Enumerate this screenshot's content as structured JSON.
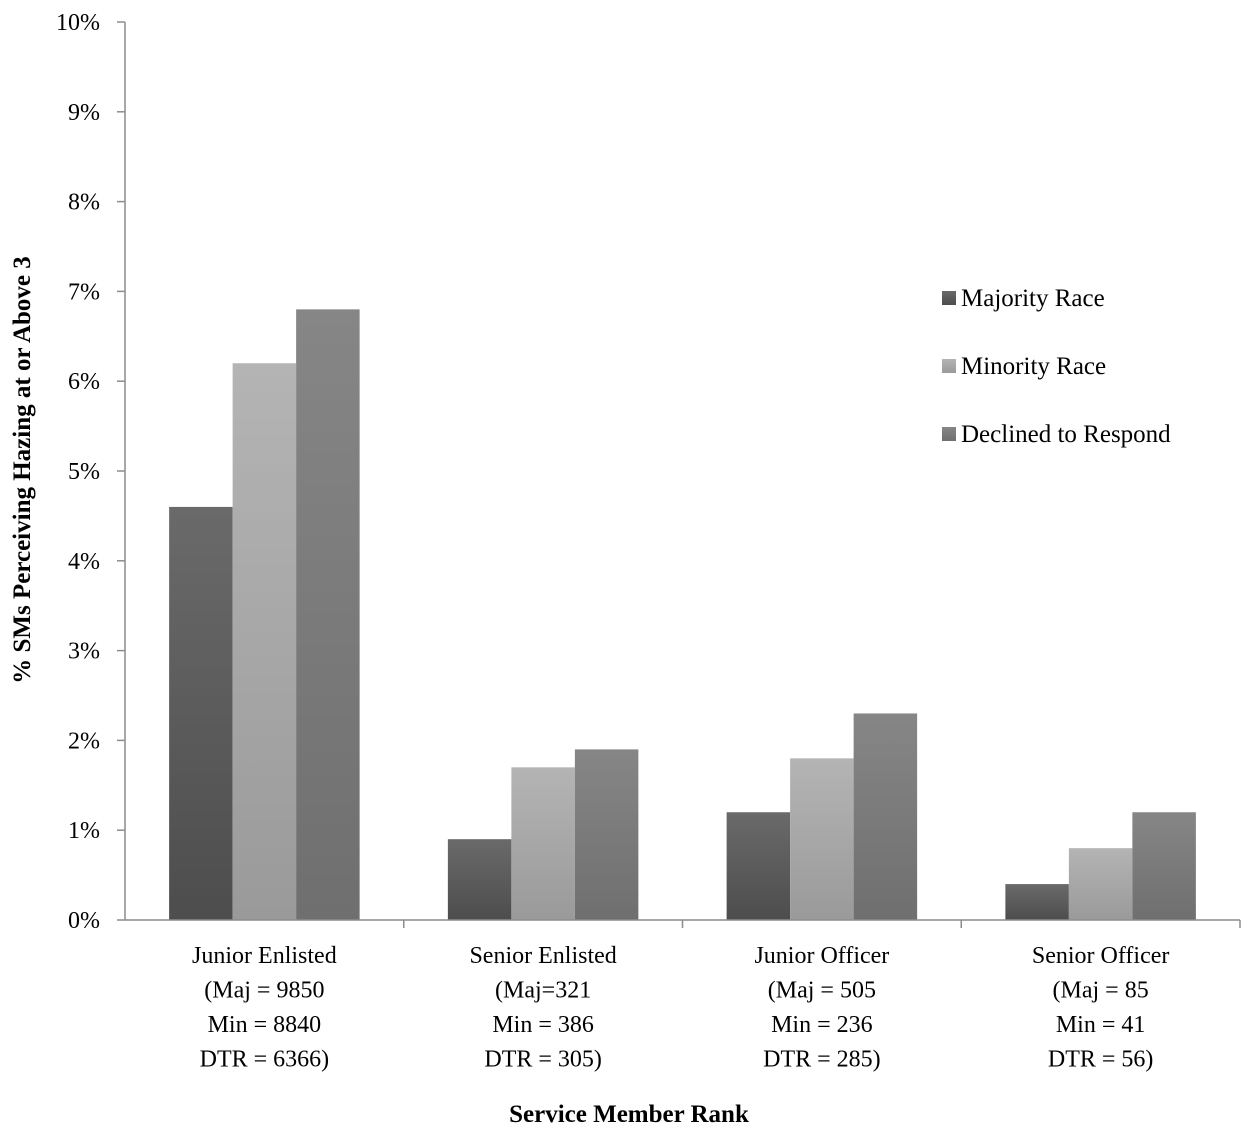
{
  "chart_data": {
    "type": "bar",
    "xlabel": "Service Member Rank",
    "ylabel": "% SMs Perceiving  Hazing at or Above 3",
    "ylim": [
      0,
      10
    ],
    "y_ticks": [
      "0%",
      "1%",
      "2%",
      "3%",
      "4%",
      "5%",
      "6%",
      "7%",
      "8%",
      "9%",
      "10%"
    ],
    "categories": [
      [
        "Junior Enlisted",
        "(Maj = 9850",
        "Min = 8840",
        "DTR = 6366)"
      ],
      [
        "Senior Enlisted",
        "(Maj=321",
        "Min = 386",
        "DTR = 305)"
      ],
      [
        "Junior Officer",
        "(Maj = 505",
        "Min = 236",
        "DTR = 285)"
      ],
      [
        "Senior Officer",
        "(Maj = 85",
        "Min = 41",
        "DTR = 56)"
      ]
    ],
    "series": [
      {
        "name": "Majority Race",
        "values": [
          4.6,
          0.9,
          1.2,
          0.4
        ],
        "color": "#4d4d4d",
        "color_light": "#6a6a6a"
      },
      {
        "name": "Minority Race",
        "values": [
          6.2,
          1.7,
          1.8,
          0.8
        ],
        "color": "#9a9a9a",
        "color_light": "#b4b4b4"
      },
      {
        "name": "Declined to Respond",
        "values": [
          6.8,
          1.9,
          2.3,
          1.2
        ],
        "color": "#6f6f6f",
        "color_light": "#868686"
      }
    ],
    "legend_position": "right",
    "grid": false
  }
}
